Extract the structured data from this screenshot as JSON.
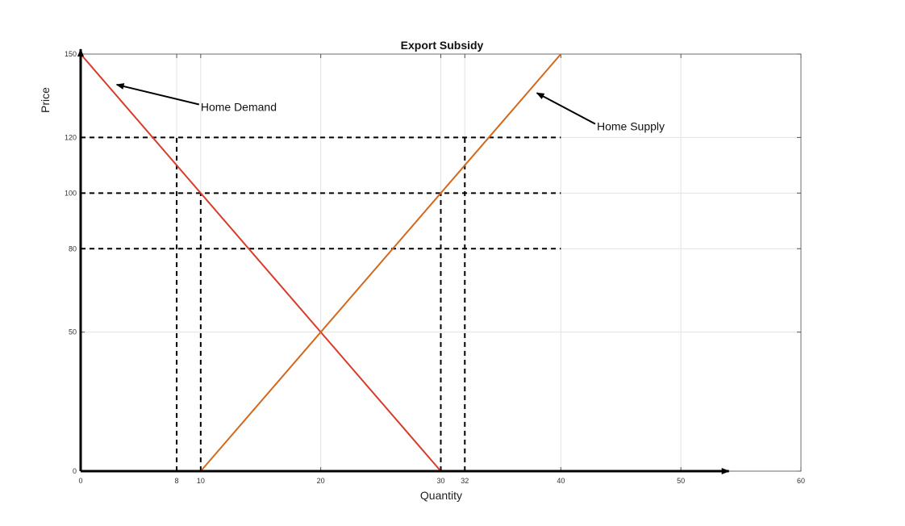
{
  "chart_data": {
    "type": "line",
    "title": "Export Subsidy",
    "xlabel": "Quantity",
    "ylabel": "Price",
    "xlim": [
      0,
      60
    ],
    "ylim": [
      0,
      150
    ],
    "grid": true,
    "x_ticks": [
      "0",
      "8",
      "10",
      "20",
      "30",
      "32",
      "40",
      "50",
      "60"
    ],
    "y_ticks": [
      "0",
      "50",
      "80",
      "100",
      "120",
      "150"
    ],
    "series": [
      {
        "name": "Home Demand",
        "color": "#d93b2b",
        "x": [
          0,
          30
        ],
        "y": [
          150,
          0
        ]
      },
      {
        "name": "Home Supply",
        "color": "#d2691e",
        "x": [
          10,
          40
        ],
        "y": [
          0,
          150
        ]
      }
    ],
    "reference_lines": {
      "horizontal": [
        {
          "y": 120,
          "x_end": 40
        },
        {
          "y": 100,
          "x_end": 40
        },
        {
          "y": 80,
          "x_end": 40
        }
      ],
      "vertical": [
        {
          "x": 8,
          "y_end": 120
        },
        {
          "x": 10,
          "y_end": 100
        },
        {
          "x": 30,
          "y_end": 100
        },
        {
          "x": 32,
          "y_end": 120
        }
      ]
    },
    "annotations": [
      {
        "text": "Home Demand",
        "text_x": 10,
        "text_y": 131,
        "arrow_to_x": 3,
        "arrow_to_y": 139
      },
      {
        "text": "Home Supply",
        "text_x": 43,
        "text_y": 124,
        "arrow_to_x": 38,
        "arrow_to_y": 136
      }
    ]
  }
}
